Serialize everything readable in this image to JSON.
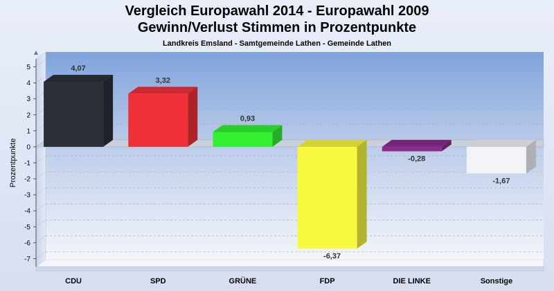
{
  "chart_data": {
    "type": "bar",
    "title": [
      "Vergleich Europawahl 2014 - Europawahl 2009",
      "Gewinn/Verlust Stimmen in Prozentpunkte"
    ],
    "subtitle": "Landkreis Emsland - Samtgemeinde Lathen - Gemeinde Lathen",
    "ylabel": "Prozentpunkte",
    "xlabel": "",
    "ylim": [
      -7.5,
      5.5
    ],
    "yticks": [
      5,
      4,
      3,
      2,
      1,
      0,
      -1,
      -2,
      -3,
      -4,
      -5,
      -6,
      -7
    ],
    "categories": [
      "CDU",
      "SPD",
      "GRÜNE",
      "FDP",
      "DIE LINKE",
      "Sonstige"
    ],
    "values": [
      4.07,
      3.32,
      0.93,
      -6.37,
      -0.28,
      -1.67
    ],
    "value_labels": [
      "4,07",
      "3,32",
      "0,93",
      "-6,37",
      "-0,28",
      "-1,67"
    ],
    "colors": [
      "#2b2f38",
      "#f03038",
      "#33f033",
      "#f8f840",
      "#8b2c8b",
      "#f2f4f8"
    ],
    "grid": true,
    "three_d": true
  }
}
